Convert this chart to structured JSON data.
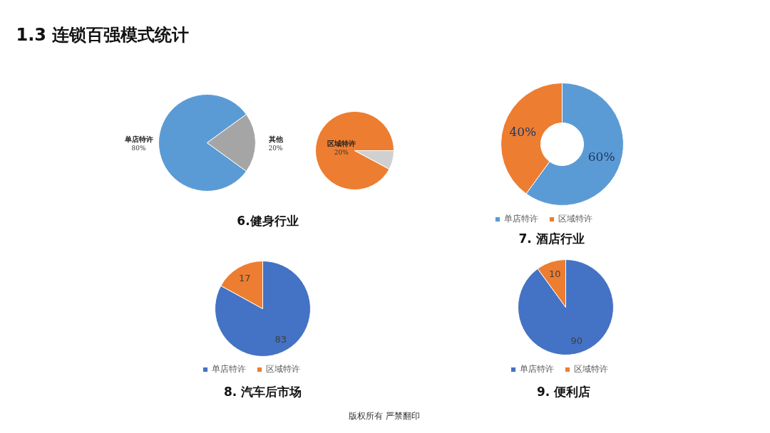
{
  "chart_data": [
    {
      "type": "other",
      "title": "1.3 连锁百强模式统计",
      "annotations": [
        "版权所有  严禁翻印"
      ]
    },
    {
      "type": "pie",
      "title": "6.健身行业",
      "categories": [
        "单店特许",
        "其他"
      ],
      "values": [
        80,
        20
      ],
      "colors": [
        "#5b9bd5",
        "#a5a5a5"
      ],
      "value_labels": [
        "80%",
        "20%"
      ]
    },
    {
      "type": "pie",
      "categories": [
        "区域特许",
        null
      ],
      "values": [
        20,
        1.7
      ],
      "colors": [
        "#ed7d31",
        "#d0d0d0"
      ],
      "value_labels": [
        "20%",
        null
      ]
    },
    {
      "type": "donut",
      "title": "7. 酒店行业",
      "categories": [
        "单店特许",
        "区域特许"
      ],
      "values": [
        60,
        40
      ],
      "colors": [
        "#5b9bd5",
        "#ed7d31"
      ],
      "value_labels": [
        "60%",
        "40%"
      ],
      "legend": "bottom"
    },
    {
      "type": "pie",
      "title": "8. 汽车后市场",
      "categories": [
        "单店特许",
        "区域特许"
      ],
      "values": [
        83,
        17
      ],
      "colors": [
        "#4472c4",
        "#ed7d31"
      ],
      "data_labels": true,
      "legend": "bottom"
    },
    {
      "type": "pie",
      "title": "9. 便利店",
      "categories": [
        "单店特许",
        "区域特许"
      ],
      "values": [
        90,
        10
      ],
      "colors": [
        "#4472c4",
        "#ed7d31"
      ],
      "data_labels": true,
      "legend": "bottom"
    }
  ]
}
